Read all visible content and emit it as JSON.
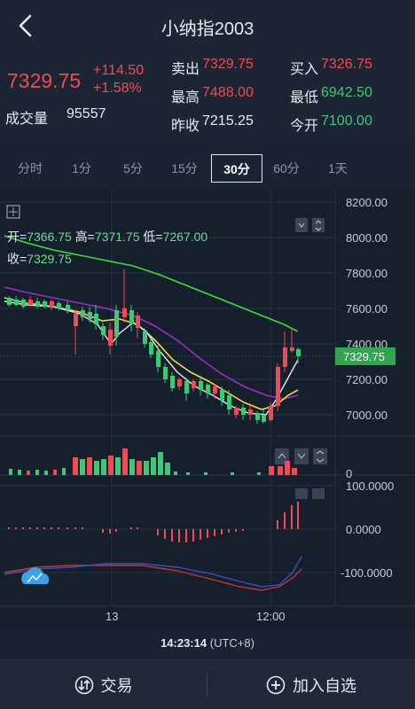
{
  "header": {
    "title": "小纳指2003"
  },
  "quote": {
    "last": "7329.75",
    "change": "+114.50",
    "change_pct": "+1.58%",
    "volume_label": "成交量",
    "volume": "95557",
    "ask_label": "卖出",
    "ask": "7329.75",
    "bid_label": "买入",
    "bid": "7326.75",
    "high_label": "最高",
    "high": "7488.00",
    "low_label": "最低",
    "low": "6942.50",
    "prev_label": "昨收",
    "prev": "7215.25",
    "open_label": "今开",
    "open": "7100.00"
  },
  "tabs": [
    {
      "label": "分时"
    },
    {
      "label": "1分"
    },
    {
      "label": "5分"
    },
    {
      "label": "15分"
    },
    {
      "label": "30分",
      "active": true
    },
    {
      "label": "60分"
    },
    {
      "label": "1天"
    }
  ],
  "chart": {
    "ohlc_open_label": "开=",
    "ohlc_open": "7366.75",
    "ohlc_high_label": "高=",
    "ohlc_high": "7371.75",
    "ohlc_low_label": "低=",
    "ohlc_low": "7267.00",
    "ohlc_close_label": "收=",
    "ohlc_close": "7329.75",
    "price_ticks": [
      "8200.00",
      "8000.00",
      "7800.00",
      "7600.00",
      "7400.00",
      "7200.00",
      "7000.00"
    ],
    "current_price_tag": "7329.75",
    "volume_tick": "0",
    "macd_ticks": [
      "100.0000",
      "0.0000",
      "-100.0000"
    ],
    "x_ticks": [
      "13",
      "12:00"
    ],
    "crosshair_time": "14:23:14",
    "timezone": "(UTC+8)"
  },
  "footer": {
    "trade_label": "交易",
    "watchlist_label": "加入自选"
  },
  "colors": {
    "up": "#f04a55",
    "down": "#3ec776",
    "ma_green": "#3ddc3d",
    "ma_purple": "#9b2fc9",
    "ma_yellow": "#f2d64a",
    "ma_white": "#e6e9ee"
  }
}
